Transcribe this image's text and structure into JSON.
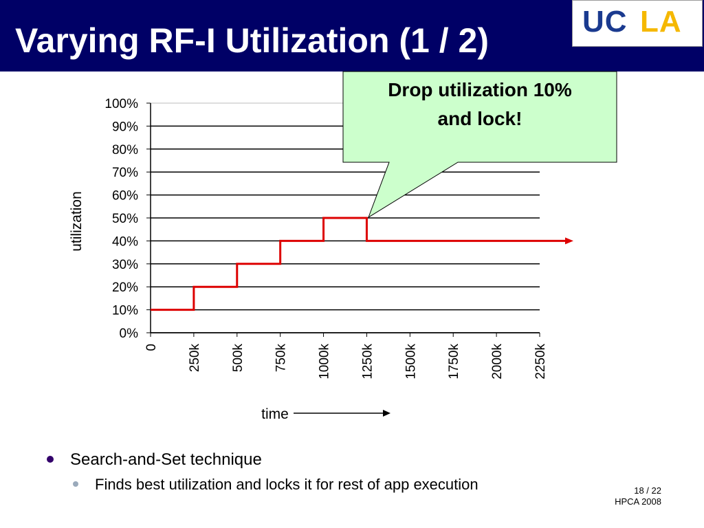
{
  "slide": {
    "title": "Varying RF-I Utilization (1 / 2)",
    "logo": {
      "letters_blue": "UC",
      "letters_gold": "LA"
    },
    "callout": {
      "line1": "Drop utilization 10%",
      "line2": "and lock!"
    },
    "bullets": [
      {
        "text": "Search-and-Set technique"
      },
      {
        "text": "Finds best utilization and locks it for rest of app execution"
      }
    ],
    "footer": {
      "page": "18 / 22",
      "venue": "HPCA 2008"
    },
    "colors": {
      "title_bar": "#000066",
      "line": "#dd0000",
      "callout_fill": "#ccffcc"
    }
  },
  "chart_data": {
    "type": "line",
    "title": "",
    "xlabel": "time",
    "ylabel": "utilization",
    "x_ticks": [
      "0",
      "250k",
      "500k",
      "750k",
      "1000k",
      "1250k",
      "1500k",
      "1750k",
      "2000k",
      "2250k"
    ],
    "y_ticks": [
      "0%",
      "10%",
      "20%",
      "30%",
      "40%",
      "50%",
      "60%",
      "70%",
      "80%",
      "90%",
      "100%"
    ],
    "xlim": [
      0,
      2250000
    ],
    "ylim": [
      0,
      100
    ],
    "grid": "horizontal",
    "series": [
      {
        "style": "step",
        "x": [
          0,
          250000,
          500000,
          750000,
          1000000,
          1250000,
          2250000
        ],
        "y": [
          10,
          20,
          30,
          40,
          50,
          40,
          40
        ]
      }
    ]
  }
}
